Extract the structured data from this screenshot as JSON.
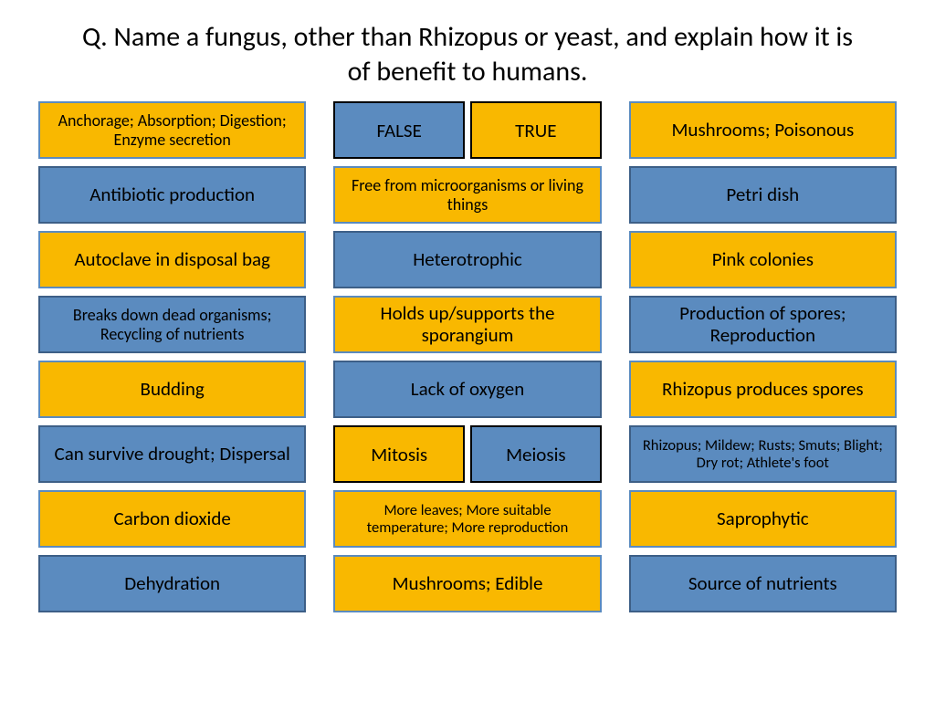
{
  "colors": {
    "blue_bg": "#5b8bbf",
    "blue_border": "#3d5f87",
    "yellow_bg": "#f9b800",
    "yellow_border": "#5b8bbf",
    "page_bg": "#ffffff",
    "text": "#000000"
  },
  "title": "Q. Name a fungus, other than Rhizopus or yeast, and explain how it is of benefit to humans.",
  "columns": [
    {
      "cells": [
        {
          "type": "single",
          "style": "yellow",
          "text": "Anchorage; Absorption; Digestion; Enzyme secretion",
          "size": "sm"
        },
        {
          "type": "single",
          "style": "blue",
          "text": "Antibiotic production"
        },
        {
          "type": "single",
          "style": "yellow",
          "text": "Autoclave in disposal bag"
        },
        {
          "type": "single",
          "style": "blue",
          "text": "Breaks down dead organisms; Recycling of nutrients",
          "size": "sm"
        },
        {
          "type": "single",
          "style": "yellow",
          "text": "Budding"
        },
        {
          "type": "single",
          "style": "blue",
          "text": "Can survive drought; Dispersal"
        },
        {
          "type": "single",
          "style": "yellow",
          "text": "Carbon dioxide"
        },
        {
          "type": "single",
          "style": "blue",
          "text": "Dehydration"
        }
      ]
    },
    {
      "cells": [
        {
          "type": "split",
          "left": {
            "style": "blue",
            "text": "FALSE"
          },
          "right": {
            "style": "yellow",
            "text": "TRUE"
          }
        },
        {
          "type": "single",
          "style": "yellow",
          "text": "Free from microorganisms or living things",
          "size": "sm"
        },
        {
          "type": "single",
          "style": "blue",
          "text": "Heterotrophic"
        },
        {
          "type": "single",
          "style": "yellow",
          "text": "Holds up/supports the sporangium"
        },
        {
          "type": "single",
          "style": "blue",
          "text": "Lack of oxygen"
        },
        {
          "type": "split",
          "left": {
            "style": "yellow",
            "text": "Mitosis"
          },
          "right": {
            "style": "blue",
            "text": "Meiosis"
          }
        },
        {
          "type": "single",
          "style": "yellow",
          "text": "More leaves; More suitable temperature; More reproduction",
          "size": "xs"
        },
        {
          "type": "single",
          "style": "yellow",
          "text": "Mushrooms; Edible"
        }
      ]
    },
    {
      "cells": [
        {
          "type": "single",
          "style": "yellow",
          "text": "Mushrooms; Poisonous"
        },
        {
          "type": "single",
          "style": "blue",
          "text": "Petri dish"
        },
        {
          "type": "single",
          "style": "yellow",
          "text": "Pink colonies"
        },
        {
          "type": "single",
          "style": "blue",
          "text": "Production of spores; Reproduction"
        },
        {
          "type": "single",
          "style": "yellow",
          "text": "Rhizopus produces spores"
        },
        {
          "type": "single",
          "style": "blue",
          "text": "Rhizopus; Mildew; Rusts; Smuts; Blight; Dry rot; Athlete's foot",
          "size": "xs"
        },
        {
          "type": "single",
          "style": "yellow",
          "text": "Saprophytic"
        },
        {
          "type": "single",
          "style": "blue",
          "text": "Source of nutrients"
        }
      ]
    }
  ]
}
